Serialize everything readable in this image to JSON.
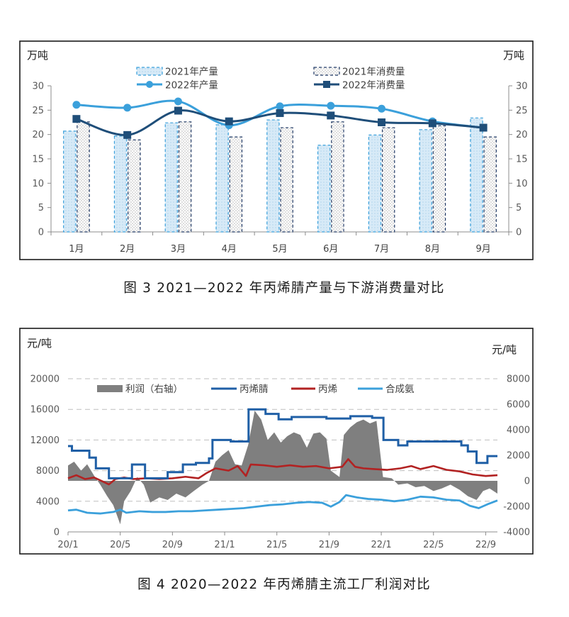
{
  "captions": {
    "figure3": "图 3  2021—2022 年丙烯腈产量与下游消费量对比",
    "figure4": "图 4  2020—2022 年丙烯腈主流工厂利润对比"
  },
  "charts": [
    {
      "chart_data": {
        "type": "bar",
        "title": "",
        "unit_left": "万吨",
        "unit_right": "万吨",
        "categories": [
          "1月",
          "2月",
          "3月",
          "4月",
          "5月",
          "6月",
          "7月",
          "8月",
          "9月"
        ],
        "ylim": [
          0,
          30
        ],
        "yticks": [
          0,
          5,
          10,
          15,
          20,
          25,
          30
        ],
        "grid": false,
        "legend_position": "top",
        "series": [
          {
            "name": "2021年产量",
            "type": "bar",
            "color": "#3ba0db",
            "values": [
              20.7,
              19.7,
              22.4,
              22.0,
              23.0,
              17.8,
              19.9,
              21.0,
              23.4
            ]
          },
          {
            "name": "2021年消费量",
            "type": "bar",
            "color": "#1f3864",
            "values": [
              22.6,
              18.9,
              22.6,
              19.5,
              21.4,
              22.6,
              21.4,
              21.8,
              19.5
            ]
          },
          {
            "name": "2022年产量",
            "type": "line",
            "color": "#3ba0db",
            "values": [
              26.1,
              25.5,
              26.8,
              21.9,
              25.8,
              25.9,
              25.3,
              22.7,
              21.4
            ]
          },
          {
            "name": "2022年消费量",
            "type": "line",
            "color": "#1f4e79",
            "values": [
              23.2,
              19.9,
              24.9,
              22.7,
              24.4,
              23.9,
              22.5,
              22.3,
              21.4
            ]
          }
        ]
      }
    },
    {
      "chart_data": {
        "type": "line",
        "title": "",
        "unit_left": "元/吨",
        "unit_right": "元/吨",
        "xlim": [
          "2020-01-01",
          "2022-09-28"
        ],
        "x_ticks": [
          "20/1",
          "20/5",
          "20/9",
          "21/1",
          "21/5",
          "21/9",
          "22/1",
          "22/5",
          "22/9"
        ],
        "ylim_left": [
          0,
          20000
        ],
        "yticks_left": [
          0,
          4000,
          8000,
          12000,
          16000,
          20000
        ],
        "ylim_right": [
          -4000,
          8000
        ],
        "yticks_right": [
          -4000,
          -2000,
          0,
          2000,
          4000,
          6000,
          8000
        ],
        "grid": true,
        "legend_position": "top",
        "series": [
          {
            "name": "利润（右轴）",
            "type": "area",
            "axis": "right",
            "color": "#7f7f7f",
            "points": [
              [
                "2020-01-01",
                1200
              ],
              [
                "2020-01-15",
                1500
              ],
              [
                "2020-02-01",
                800
              ],
              [
                "2020-02-15",
                1300
              ],
              [
                "2020-03-01",
                400
              ],
              [
                "2020-03-15",
                -300
              ],
              [
                "2020-04-01",
                -1200
              ],
              [
                "2020-04-15",
                -1900
              ],
              [
                "2020-05-01",
                -3400
              ],
              [
                "2020-05-10",
                -1600
              ],
              [
                "2020-05-25",
                -800
              ],
              [
                "2020-06-10",
                300
              ],
              [
                "2020-06-25",
                -300
              ],
              [
                "2020-07-10",
                -1700
              ],
              [
                "2020-08-01",
                -1300
              ],
              [
                "2020-08-20",
                -1500
              ],
              [
                "2020-09-10",
                -1000
              ],
              [
                "2020-10-01",
                -1300
              ],
              [
                "2020-10-20",
                -800
              ],
              [
                "2020-11-10",
                -300
              ],
              [
                "2020-11-25",
                0
              ],
              [
                "2020-12-10",
                1500
              ],
              [
                "2020-12-25",
                2000
              ],
              [
                "2021-01-10",
                2400
              ],
              [
                "2021-01-25",
                1300
              ],
              [
                "2021-02-10",
                1200
              ],
              [
                "2021-02-25",
                2800
              ],
              [
                "2021-03-10",
                5500
              ],
              [
                "2021-03-25",
                4800
              ],
              [
                "2021-04-10",
                3200
              ],
              [
                "2021-04-25",
                3800
              ],
              [
                "2021-05-10",
                3000
              ],
              [
                "2021-05-25",
                3500
              ],
              [
                "2021-06-10",
                3800
              ],
              [
                "2021-06-25",
                3600
              ],
              [
                "2021-07-10",
                2600
              ],
              [
                "2021-07-25",
                3700
              ],
              [
                "2021-08-10",
                3800
              ],
              [
                "2021-08-25",
                3300
              ],
              [
                "2021-09-05",
                800
              ],
              [
                "2021-09-25",
                300
              ],
              [
                "2021-10-05",
                3600
              ],
              [
                "2021-10-20",
                4200
              ],
              [
                "2021-11-05",
                4600
              ],
              [
                "2021-11-20",
                4800
              ],
              [
                "2021-12-05",
                4500
              ],
              [
                "2021-12-20",
                4700
              ],
              [
                "2022-01-05",
                300
              ],
              [
                "2022-01-25",
                200
              ],
              [
                "2022-02-10",
                -300
              ],
              [
                "2022-03-01",
                -200
              ],
              [
                "2022-03-20",
                -500
              ],
              [
                "2022-04-10",
                -400
              ],
              [
                "2022-05-01",
                -800
              ],
              [
                "2022-05-20",
                -600
              ],
              [
                "2022-06-10",
                -300
              ],
              [
                "2022-07-01",
                -700
              ],
              [
                "2022-07-20",
                -1200
              ],
              [
                "2022-08-10",
                -1500
              ],
              [
                "2022-08-25",
                -800
              ],
              [
                "2022-09-10",
                -600
              ],
              [
                "2022-09-28",
                -1000
              ]
            ]
          },
          {
            "name": "丙烯腈",
            "type": "step",
            "axis": "left",
            "color": "#1f5fa6",
            "points": [
              [
                "2020-01-01",
                11200
              ],
              [
                "2020-01-10",
                10600
              ],
              [
                "2020-02-20",
                9700
              ],
              [
                "2020-03-05",
                8300
              ],
              [
                "2020-04-05",
                7000
              ],
              [
                "2020-05-28",
                8800
              ],
              [
                "2020-06-28",
                7000
              ],
              [
                "2020-08-20",
                7800
              ],
              [
                "2020-09-25",
                8800
              ],
              [
                "2020-10-25",
                9000
              ],
              [
                "2020-11-25",
                9600
              ],
              [
                "2020-12-03",
                12000
              ],
              [
                "2021-01-15",
                11800
              ],
              [
                "2021-02-26",
                16000
              ],
              [
                "2021-04-05",
                15400
              ],
              [
                "2021-05-05",
                14700
              ],
              [
                "2021-06-05",
                15000
              ],
              [
                "2021-08-25",
                14800
              ],
              [
                "2021-10-20",
                15100
              ],
              [
                "2021-12-10",
                14900
              ],
              [
                "2022-01-06",
                12000
              ],
              [
                "2022-02-10",
                11300
              ],
              [
                "2022-03-01",
                11800
              ],
              [
                "2022-07-05",
                11300
              ],
              [
                "2022-07-20",
                10500
              ],
              [
                "2022-08-10",
                9000
              ],
              [
                "2022-09-05",
                9900
              ],
              [
                "2022-09-28",
                9900
              ]
            ]
          },
          {
            "name": "丙烯",
            "type": "line",
            "axis": "left",
            "color": "#b22222",
            "points": [
              [
                "2020-01-01",
                7000
              ],
              [
                "2020-01-20",
                7400
              ],
              [
                "2020-02-10",
                6900
              ],
              [
                "2020-03-01",
                7100
              ],
              [
                "2020-03-20",
                6600
              ],
              [
                "2020-04-05",
                6200
              ],
              [
                "2020-04-20",
                6900
              ],
              [
                "2020-05-10",
                7100
              ],
              [
                "2020-06-01",
                6900
              ],
              [
                "2020-07-01",
                7000
              ],
              [
                "2020-08-01",
                6900
              ],
              [
                "2020-09-01",
                7000
              ],
              [
                "2020-10-01",
                7200
              ],
              [
                "2020-11-01",
                7000
              ],
              [
                "2020-11-20",
                7700
              ],
              [
                "2020-12-10",
                8300
              ],
              [
                "2021-01-10",
                8000
              ],
              [
                "2021-02-01",
                8600
              ],
              [
                "2021-02-20",
                7300
              ],
              [
                "2021-03-01",
                8800
              ],
              [
                "2021-04-01",
                8700
              ],
              [
                "2021-05-01",
                8500
              ],
              [
                "2021-06-01",
                8700
              ],
              [
                "2021-07-01",
                8500
              ],
              [
                "2021-08-01",
                8600
              ],
              [
                "2021-09-01",
                8300
              ],
              [
                "2021-10-01",
                8500
              ],
              [
                "2021-10-15",
                9500
              ],
              [
                "2021-11-01",
                8500
              ],
              [
                "2021-11-20",
                8300
              ],
              [
                "2021-12-15",
                8200
              ],
              [
                "2022-01-15",
                8100
              ],
              [
                "2022-02-15",
                8300
              ],
              [
                "2022-03-10",
                8600
              ],
              [
                "2022-04-01",
                8200
              ],
              [
                "2022-05-01",
                8600
              ],
              [
                "2022-06-01",
                8100
              ],
              [
                "2022-07-01",
                7900
              ],
              [
                "2022-08-01",
                7500
              ],
              [
                "2022-09-01",
                7300
              ],
              [
                "2022-09-28",
                7400
              ]
            ]
          },
          {
            "name": "合成氨",
            "type": "line",
            "axis": "left",
            "color": "#3ba0db",
            "points": [
              [
                "2020-01-01",
                2800
              ],
              [
                "2020-01-20",
                2900
              ],
              [
                "2020-02-15",
                2500
              ],
              [
                "2020-03-15",
                2400
              ],
              [
                "2020-04-15",
                2600
              ],
              [
                "2020-05-01",
                2900
              ],
              [
                "2020-05-15",
                2500
              ],
              [
                "2020-06-15",
                2700
              ],
              [
                "2020-07-15",
                2600
              ],
              [
                "2020-08-15",
                2600
              ],
              [
                "2020-09-15",
                2700
              ],
              [
                "2020-10-15",
                2700
              ],
              [
                "2020-11-15",
                2800
              ],
              [
                "2020-12-15",
                2900
              ],
              [
                "2021-01-15",
                3000
              ],
              [
                "2021-02-15",
                3100
              ],
              [
                "2021-03-15",
                3300
              ],
              [
                "2021-04-15",
                3500
              ],
              [
                "2021-05-15",
                3600
              ],
              [
                "2021-06-15",
                3800
              ],
              [
                "2021-07-15",
                3900
              ],
              [
                "2021-08-15",
                3800
              ],
              [
                "2021-09-05",
                3300
              ],
              [
                "2021-09-25",
                3900
              ],
              [
                "2021-10-10",
                4800
              ],
              [
                "2021-11-05",
                4500
              ],
              [
                "2021-12-01",
                4300
              ],
              [
                "2022-01-01",
                4200
              ],
              [
                "2022-02-01",
                4000
              ],
              [
                "2022-03-01",
                4200
              ],
              [
                "2022-04-01",
                4600
              ],
              [
                "2022-05-01",
                4500
              ],
              [
                "2022-06-01",
                4200
              ],
              [
                "2022-07-01",
                4100
              ],
              [
                "2022-07-25",
                3400
              ],
              [
                "2022-08-15",
                3100
              ],
              [
                "2022-09-05",
                3600
              ],
              [
                "2022-09-28",
                4100
              ]
            ]
          }
        ]
      }
    }
  ]
}
